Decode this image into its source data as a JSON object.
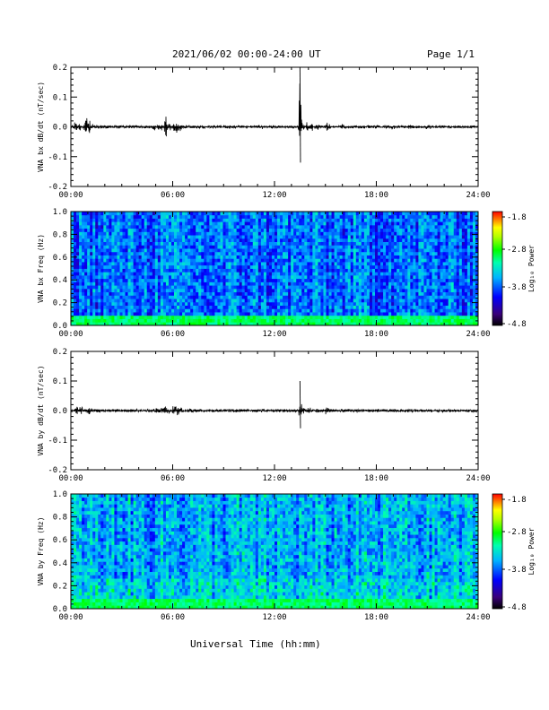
{
  "header": {
    "title": "2021/06/02  00:00-24:00 UT",
    "page": "Page 1/1"
  },
  "footer": {
    "xlabel": "Universal Time (hh:mm)"
  },
  "colorscale": {
    "colors": [
      "#000000",
      "#3a007a",
      "#0000ff",
      "#00b4ff",
      "#00ffb0",
      "#00ff00",
      "#b4ff00",
      "#ffff00",
      "#ff8000",
      "#ff0000"
    ]
  },
  "chart_data": [
    {
      "type": "line",
      "ylabel": "VNA bx dB/dt (nT/sec)",
      "xlim": [
        0,
        24
      ],
      "ylim": [
        -0.2,
        0.2
      ],
      "x_ticks": [
        "00:00",
        "06:00",
        "12:00",
        "18:00",
        "24:00"
      ],
      "y_ticks": [
        "-0.2",
        "-0.1",
        "0.0",
        "0.1",
        "0.2"
      ],
      "series": [
        {
          "x": [
            0,
            0.3,
            0.5,
            0.9,
            1.5,
            2.5,
            4.0,
            5.4,
            5.6,
            5.8,
            6.0,
            6.3,
            7.0,
            8.5,
            10.0,
            11.5,
            13.0,
            13.4,
            13.5,
            13.55,
            13.7,
            14.0,
            14.5,
            15.0,
            16.0,
            17.0,
            18.0,
            19.0,
            20.0,
            21.0,
            22.0,
            23.0,
            24.0
          ],
          "y": [
            0.0,
            0.03,
            -0.03,
            0.05,
            -0.01,
            0.0,
            0.005,
            -0.02,
            0.055,
            -0.03,
            0.02,
            0.03,
            -0.01,
            0.0,
            0.0,
            0.0,
            0.0,
            0.0,
            0.21,
            -0.12,
            0.03,
            -0.05,
            0.02,
            -0.02,
            0.015,
            -0.01,
            0.01,
            -0.01,
            0.01,
            -0.01,
            0.005,
            0.0,
            0.0
          ]
        }
      ]
    },
    {
      "type": "heatmap",
      "ylabel": "VNA bx Freq (Hz)",
      "colorbar_label": "Log₁₀ Power",
      "xlim": [
        0,
        24
      ],
      "ylim": [
        0.0,
        1.0
      ],
      "x_ticks": [
        "00:00",
        "06:00",
        "12:00",
        "18:00",
        "24:00"
      ],
      "y_ticks": [
        "0.0",
        "0.2",
        "0.4",
        "0.6",
        "0.8",
        "1.0"
      ],
      "colorbar_ticks": [
        "-1.8",
        "-2.8",
        "-3.8",
        "-4.8"
      ],
      "zlim": [
        -4.8,
        -1.8
      ],
      "note_levels": {
        "base": -3.7,
        "low_freq_band": -3.0
      }
    },
    {
      "type": "line",
      "ylabel": "VNA by dB/dt (nT/sec)",
      "xlim": [
        0,
        24
      ],
      "ylim": [
        -0.2,
        0.2
      ],
      "x_ticks": [
        "00:00",
        "06:00",
        "12:00",
        "18:00",
        "24:00"
      ],
      "y_ticks": [
        "-0.2",
        "-0.1",
        "0.0",
        "0.1",
        "0.2"
      ],
      "series": [
        {
          "x": [
            0,
            0.4,
            0.6,
            1.0,
            1.5,
            2.5,
            4.0,
            5.4,
            5.6,
            5.8,
            6.0,
            6.3,
            7.0,
            8.5,
            10.0,
            11.5,
            13.0,
            13.4,
            13.5,
            13.55,
            13.7,
            14.0,
            14.5,
            15.0,
            16.0,
            17.0,
            18.0,
            19.0,
            20.0,
            21.0,
            22.0,
            23.0,
            24.0
          ],
          "y": [
            0.0,
            0.02,
            -0.03,
            0.03,
            -0.01,
            0.0,
            0.005,
            -0.02,
            0.065,
            -0.03,
            0.02,
            0.025,
            -0.01,
            0.0,
            0.0,
            0.0,
            0.0,
            0.0,
            0.1,
            -0.06,
            0.025,
            -0.02,
            0.015,
            -0.015,
            0.01,
            -0.01,
            0.008,
            -0.008,
            0.006,
            -0.006,
            0.005,
            0.0,
            0.0
          ]
        }
      ]
    },
    {
      "type": "heatmap",
      "ylabel": "VNA by Freq (Hz)",
      "colorbar_label": "Log₁₀ Power",
      "xlim": [
        0,
        24
      ],
      "ylim": [
        0.0,
        1.0
      ],
      "x_ticks": [
        "00:00",
        "06:00",
        "12:00",
        "18:00",
        "24:00"
      ],
      "y_ticks": [
        "0.0",
        "0.2",
        "0.4",
        "0.6",
        "0.8",
        "1.0"
      ],
      "colorbar_ticks": [
        "-1.8",
        "-2.8",
        "-3.8",
        "-4.8"
      ],
      "zlim": [
        -4.8,
        -1.8
      ],
      "note_levels": {
        "base": -3.5,
        "low_freq_band": -3.0
      }
    }
  ]
}
